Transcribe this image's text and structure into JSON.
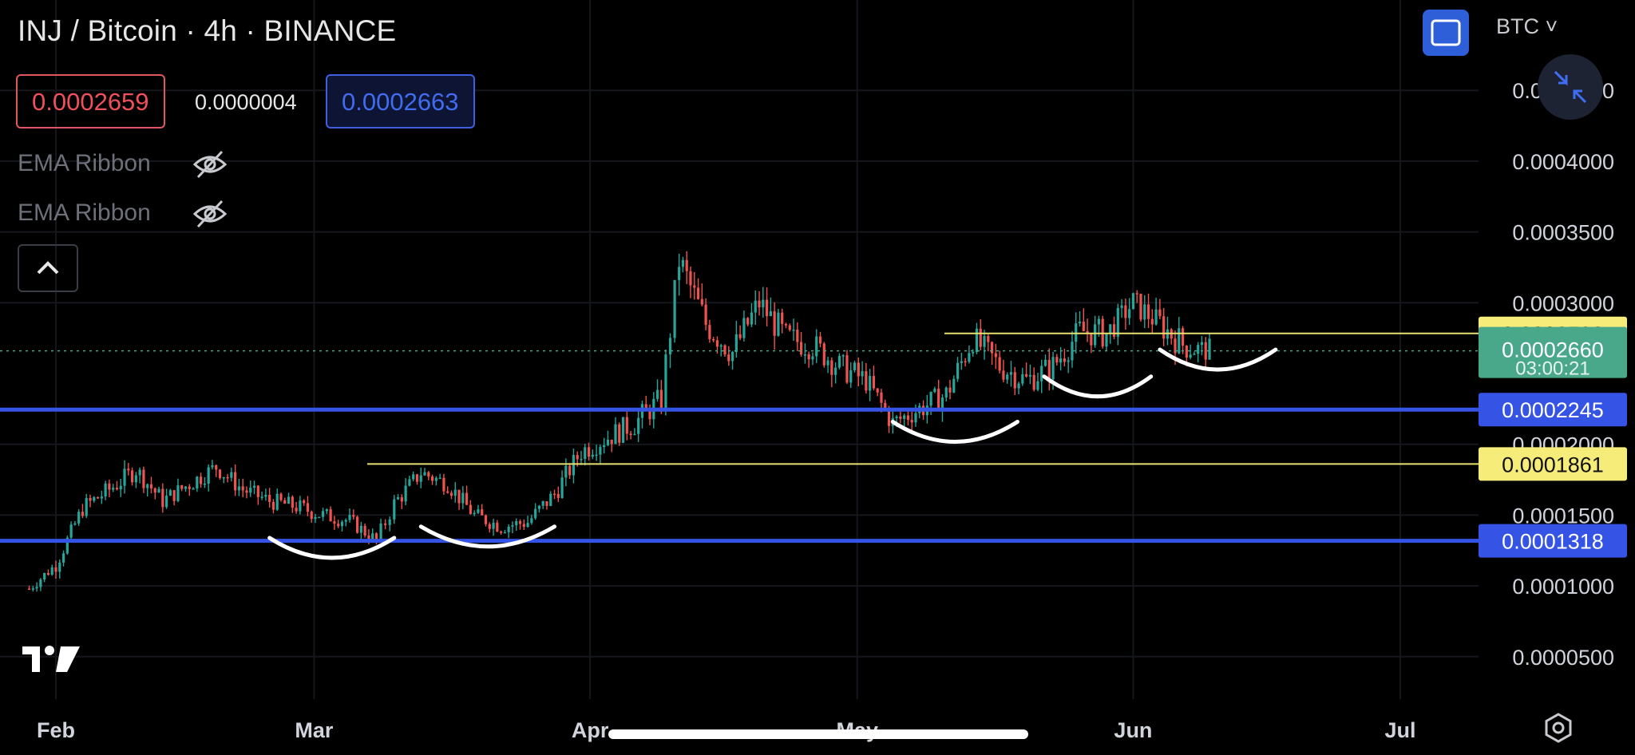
{
  "header": {
    "title": "INJ / Bitcoin · 4h · BINANCE",
    "bid": "0.0002659",
    "spread": "0.0000004",
    "ask": "0.0002663",
    "indicators": [
      "EMA Ribbon",
      "EMA Ribbon"
    ],
    "currency": "BTC"
  },
  "colors": {
    "background": "#000000",
    "up": "#26a69a",
    "down": "#ef5350",
    "support": "#3554e6",
    "resistance": "#e8e070",
    "last_price": "#4aa88a",
    "annotation": "#ffffff"
  },
  "chart_data": {
    "type": "candlestick",
    "x_ticks": [
      "Feb",
      "Mar",
      "Apr",
      "May",
      "Jun",
      "Jul"
    ],
    "y_ticks": [
      "0.0000500",
      "0.0001000",
      "0.0001500",
      "0.0002000",
      "0.0003000",
      "0.0003500",
      "0.0004000",
      "0.0004500"
    ],
    "ylim": [
      2e-05,
      0.00048
    ],
    "series": [
      {
        "x": [
          "2024-01-29",
          "2024-02-01",
          "2024-02-04",
          "2024-02-07",
          "2024-02-10",
          "2024-02-13",
          "2024-02-16",
          "2024-02-19",
          "2024-02-22",
          "2024-02-25",
          "2024-02-28",
          "2024-03-02",
          "2024-03-05",
          "2024-03-08",
          "2024-03-10",
          "2024-03-13",
          "2024-03-16",
          "2024-03-19",
          "2024-03-22",
          "2024-03-25",
          "2024-03-28",
          "2024-03-31",
          "2024-04-03",
          "2024-04-06",
          "2024-04-09",
          "2024-04-11",
          "2024-04-14",
          "2024-04-17",
          "2024-04-20",
          "2024-04-23",
          "2024-04-26",
          "2024-04-29",
          "2024-05-02",
          "2024-05-05",
          "2024-05-08",
          "2024-05-11",
          "2024-05-14",
          "2024-05-17",
          "2024-05-20",
          "2024-05-23",
          "2024-05-26",
          "2024-05-29",
          "2024-06-01",
          "2024-06-04",
          "2024-06-07",
          "2024-06-10"
        ],
        "close": [
          9.8e-05,
          0.000115,
          0.000155,
          0.000168,
          0.000182,
          0.00016,
          0.000172,
          0.000184,
          0.000168,
          0.00016,
          0.000156,
          0.00015,
          0.000146,
          0.000132,
          0.000158,
          0.00018,
          0.000172,
          0.00015,
          0.000142,
          0.000145,
          0.000165,
          0.000195,
          0.000205,
          0.000215,
          0.000232,
          0.00033,
          0.000285,
          0.000265,
          0.0003,
          0.000275,
          0.00027,
          0.000255,
          0.000245,
          0.000215,
          0.000225,
          0.000235,
          0.000275,
          0.000255,
          0.000245,
          0.000255,
          0.00028,
          0.000278,
          0.0003,
          0.000285,
          0.000268,
          0.000266
        ],
        "high": [
          0.000102,
          0.000121,
          0.000162,
          0.000176,
          0.00019,
          0.000167,
          0.000179,
          0.000192,
          0.000175,
          0.000167,
          0.000163,
          0.000157,
          0.000152,
          0.000138,
          0.000166,
          0.000187,
          0.000179,
          0.000157,
          0.000148,
          0.000152,
          0.000173,
          0.000204,
          0.000214,
          0.000225,
          0.000243,
          0.000345,
          0.000298,
          0.000277,
          0.000313,
          0.000287,
          0.000282,
          0.000266,
          0.000256,
          0.000225,
          0.000235,
          0.000245,
          0.000287,
          0.000266,
          0.000256,
          0.000266,
          0.000292,
          0.00029,
          0.000303,
          0.000298,
          0.00028,
          0.000274
        ],
        "low": [
          9.4e-05,
          0.00011,
          0.000148,
          0.00016,
          0.000174,
          0.000153,
          0.000165,
          0.000176,
          0.000161,
          0.000153,
          0.000149,
          0.000143,
          0.00014,
          0.000126,
          0.000151,
          0.000173,
          0.000165,
          0.000143,
          0.000136,
          0.000138,
          0.000158,
          0.000186,
          0.000196,
          0.000205,
          0.000221,
          0.000315,
          0.000272,
          0.000253,
          0.000287,
          0.000263,
          0.000258,
          0.000244,
          0.000234,
          0.000208,
          0.000215,
          0.000225,
          0.000263,
          0.000244,
          0.000234,
          0.000244,
          0.000268,
          0.000266,
          0.000286,
          0.000272,
          0.000256,
          0.00026
        ]
      }
    ],
    "horizontal_levels": [
      {
        "value": 0.0002783,
        "label": "0.0002783",
        "kind": "resistance"
      },
      {
        "value": 0.0002245,
        "label": "0.0002245",
        "kind": "support"
      },
      {
        "value": 0.0001861,
        "label": "0.0001861",
        "kind": "resistance"
      },
      {
        "value": 0.0001318,
        "label": "0.0001318",
        "kind": "support"
      }
    ],
    "last_price": {
      "value": 0.000266,
      "label": "0.0002660",
      "countdown": "03:00:21"
    },
    "annotations": [
      {
        "type": "arc",
        "x_start": "2024-02-25",
        "x_end": "2024-03-10",
        "y": 0.000126
      },
      {
        "type": "arc",
        "x_start": "2024-03-13",
        "x_end": "2024-03-28",
        "y": 0.000134
      },
      {
        "type": "arc",
        "x_start": "2024-05-05",
        "x_end": "2024-05-19",
        "y": 0.000208
      },
      {
        "type": "arc",
        "x_start": "2024-05-22",
        "x_end": "2024-06-03",
        "y": 0.00024
      },
      {
        "type": "arc",
        "x_start": "2024-06-04",
        "x_end": "2024-06-17",
        "y": 0.000259
      }
    ],
    "grid": true
  }
}
